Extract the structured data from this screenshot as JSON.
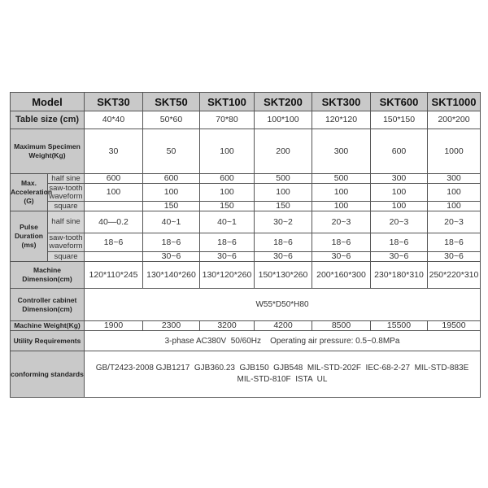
{
  "header": {
    "model": "Model",
    "models": [
      "SKT30",
      "SKT50",
      "SKT100",
      "SKT200",
      "SKT300",
      "SKT600",
      "SKT1000"
    ]
  },
  "table_size": {
    "label": "Table size (cm)",
    "values": [
      "40*40",
      "50*60",
      "70*80",
      "100*100",
      "120*120",
      "150*150",
      "200*200"
    ]
  },
  "max_weight": {
    "label": "Maximum Specimen Weight(Kg)",
    "values": [
      "30",
      "50",
      "100",
      "200",
      "300",
      "600",
      "1000"
    ]
  },
  "acceleration": {
    "label": "Max. Acceleration (G)",
    "half_sine": {
      "label": "half sine",
      "values": [
        "600",
        "600",
        "600",
        "500",
        "500",
        "300",
        "300"
      ]
    },
    "saw_tooth": {
      "label": "saw-tooth waveform",
      "values": [
        "100",
        "100",
        "100",
        "100",
        "100",
        "100",
        "100"
      ]
    },
    "square": {
      "label": "square",
      "values": [
        "",
        "150",
        "150",
        "150",
        "100",
        "100",
        "100"
      ]
    }
  },
  "pulse": {
    "label": "Pulse Duration (ms)",
    "half_sine": {
      "label": "half sine",
      "values": [
        "40—0.2",
        "40~1",
        "40~1",
        "30~2",
        "20~3",
        "20~3",
        "20~3"
      ]
    },
    "saw_tooth": {
      "label": "saw-tooth waveform",
      "values": [
        "18~6",
        "18~6",
        "18~6",
        "18~6",
        "18~6",
        "18~6",
        "18~6"
      ]
    },
    "square": {
      "label": "square",
      "values": [
        "",
        "30~6",
        "30~6",
        "30~6",
        "30~6",
        "30~6",
        "30~6"
      ]
    }
  },
  "machine_dim": {
    "label": "Machine Dimension(cm)",
    "values": [
      "120*110*245",
      "130*140*260",
      "130*120*260",
      "150*130*260",
      "200*160*300",
      "230*180*310",
      "250*220*310"
    ]
  },
  "controller": {
    "label": "Controller cabinet Dimension(cm)",
    "value": "W55*D50*H80"
  },
  "machine_weight": {
    "label": "Machine Weight(Kg)",
    "values": [
      "1900",
      "2300",
      "3200",
      "4200",
      "8500",
      "15500",
      "19500"
    ]
  },
  "utility": {
    "label": "Utility Requirements",
    "value": "3-phase AC380V  50/60Hz    Operating air pressure: 0.5~0.8MPa"
  },
  "standards": {
    "label": "conforming standards",
    "line1": "GB/T2423-2008 GJB1217  GJB360.23  GJB150  GJB548  MIL-STD-202F  IEC-68-2-27  MIL-STD-883E",
    "line2": "MIL-STD-810F  ISTA  UL"
  }
}
